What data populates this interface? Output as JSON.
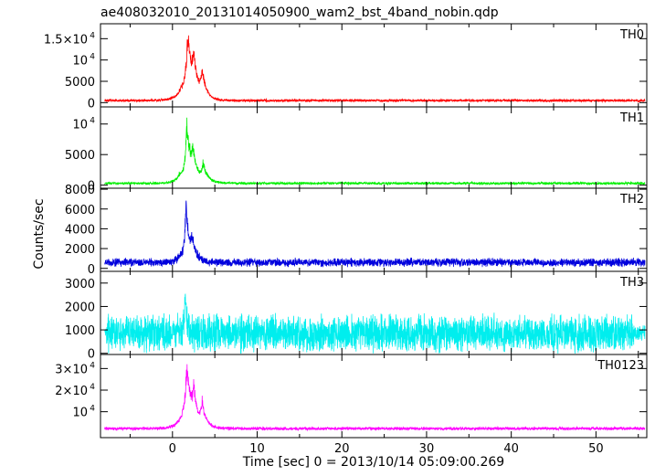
{
  "chart_data": {
    "type": "line",
    "title": "ae408032010_20131014050900_wam2_bst_4band_nobin.qdp",
    "xlabel": "Time [sec] 0 = 2013/10/14 05:09:00.269",
    "ylabel": "Counts/sec",
    "xlim": [
      -8.5,
      56
    ],
    "xticks": [
      0,
      10,
      20,
      30,
      40,
      50
    ],
    "panels": [
      {
        "name": "TH0",
        "color": "#ff0000",
        "ylim": [
          -1000,
          18500
        ],
        "yticks": [
          {
            "value": 0,
            "label": "0"
          },
          {
            "value": 5000,
            "label": "5000"
          },
          {
            "value": 10000,
            "label": "10",
            "exp": "4"
          },
          {
            "value": 15000,
            "label": "1.5×10",
            "exp": "4"
          }
        ],
        "baseline": 500,
        "noise": 500,
        "noise_profile": "flat",
        "start": -8.0,
        "peaks": [
          {
            "t": 1.8,
            "amp": 16500,
            "rise": 0.3,
            "decay": 0.6
          },
          {
            "t": 2.5,
            "amp": 8000,
            "rise": 0.2,
            "decay": 0.5
          },
          {
            "t": 3.5,
            "amp": 6500,
            "rise": 0.2,
            "decay": 0.5
          },
          {
            "t": 1.0,
            "amp": 2500,
            "rise": 0.8,
            "decay": 1.2
          }
        ]
      },
      {
        "name": "TH1",
        "color": "#00ee00",
        "ylim": [
          -500,
          12800
        ],
        "yticks": [
          {
            "value": 0,
            "label": "0"
          },
          {
            "value": 5000,
            "label": "5000"
          },
          {
            "value": 10000,
            "label": "10",
            "exp": "4"
          }
        ],
        "baseline": 300,
        "noise": 350,
        "noise_profile": "flat",
        "start": -8.0,
        "peaks": [
          {
            "t": 1.7,
            "amp": 11000,
            "rise": 0.25,
            "decay": 0.5
          },
          {
            "t": 2.4,
            "amp": 4500,
            "rise": 0.2,
            "decay": 0.6
          },
          {
            "t": 3.6,
            "amp": 3000,
            "rise": 0.2,
            "decay": 0.6
          },
          {
            "t": 0.8,
            "amp": 1500,
            "rise": 0.6,
            "decay": 1.0
          }
        ]
      },
      {
        "name": "TH2",
        "color": "#0000dd",
        "ylim": [
          -300,
          8100
        ],
        "yticks": [
          {
            "value": 0,
            "label": "0"
          },
          {
            "value": 2000,
            "label": "2000"
          },
          {
            "value": 4000,
            "label": "4000"
          },
          {
            "value": 6000,
            "label": "6000"
          },
          {
            "value": 8000,
            "label": "8000"
          }
        ],
        "baseline": 600,
        "noise": 700,
        "noise_profile": "flat",
        "start": -8.0,
        "peaks": [
          {
            "t": 1.6,
            "amp": 6800,
            "rise": 0.2,
            "decay": 0.4
          },
          {
            "t": 2.3,
            "amp": 2000,
            "rise": 0.2,
            "decay": 0.6
          },
          {
            "t": 0.9,
            "amp": 800,
            "rise": 0.5,
            "decay": 0.9
          }
        ]
      },
      {
        "name": "TH3",
        "color": "#00eeee",
        "ylim": [
          -50,
          3500
        ],
        "yticks": [
          {
            "value": 0,
            "label": "0"
          },
          {
            "value": 1000,
            "label": "1000"
          },
          {
            "value": 2000,
            "label": "2000"
          },
          {
            "value": 3000,
            "label": "3000"
          }
        ],
        "baseline": 850,
        "noise": 1300,
        "noise_profile": "tapered",
        "start": -8.0,
        "peaks": [
          {
            "t": 1.5,
            "amp": 2500,
            "rise": 0.08,
            "decay": 0.15
          }
        ]
      },
      {
        "name": "TH0123",
        "color": "#ff00ff",
        "ylim": [
          -2000,
          36500
        ],
        "yticks": [
          {
            "value": 10000,
            "label": "10",
            "exp": "4"
          },
          {
            "value": 20000,
            "label": "2×10",
            "exp": "4"
          },
          {
            "value": 30000,
            "label": "3×10",
            "exp": "4"
          }
        ],
        "baseline": 2200,
        "noise": 1200,
        "noise_profile": "flat",
        "start": -8.0,
        "peaks": [
          {
            "t": 1.7,
            "amp": 33000,
            "rise": 0.3,
            "decay": 0.6
          },
          {
            "t": 2.5,
            "amp": 14000,
            "rise": 0.2,
            "decay": 0.5
          },
          {
            "t": 3.5,
            "amp": 11000,
            "rise": 0.2,
            "decay": 0.5
          },
          {
            "t": 0.9,
            "amp": 4000,
            "rise": 0.8,
            "decay": 1.2
          }
        ]
      }
    ]
  }
}
